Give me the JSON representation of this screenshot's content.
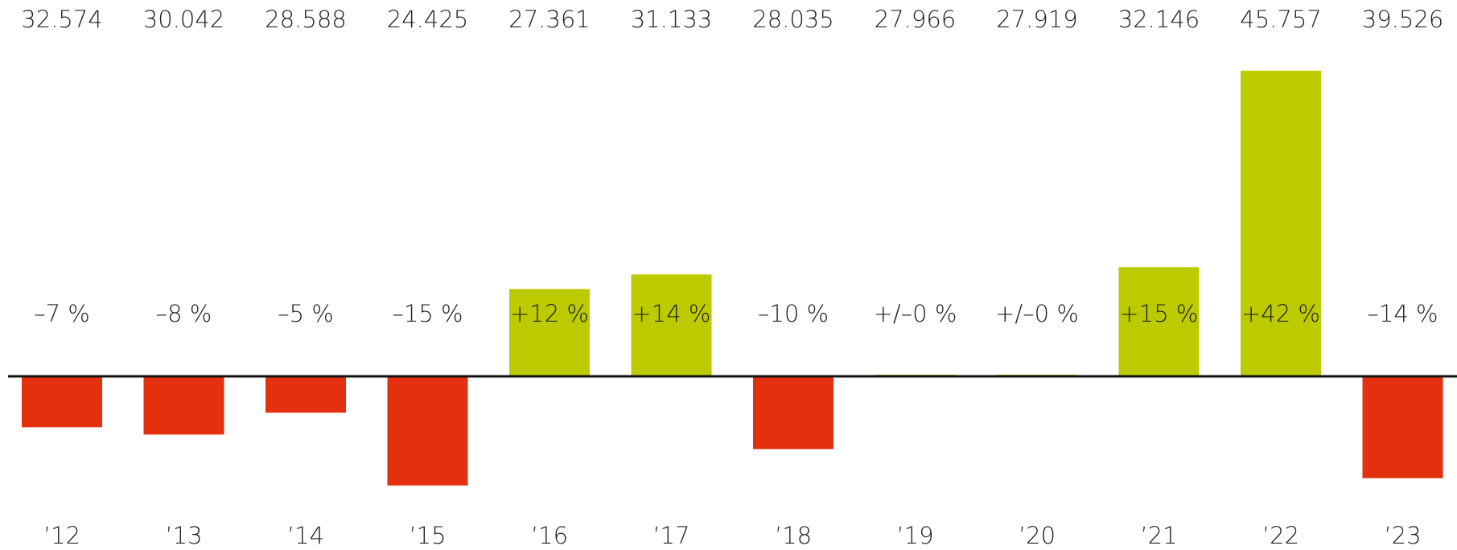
{
  "chart_data": {
    "type": "bar",
    "categories": [
      "’12",
      "’13",
      "’14",
      "’15",
      "’16",
      "’17",
      "’18",
      "’19",
      "’20",
      "’21",
      "’22",
      "’23"
    ],
    "values": [
      -7,
      -8,
      -5,
      -15,
      12,
      14,
      -10,
      0,
      0,
      15,
      42,
      -14
    ],
    "value_labels": [
      "–7 %",
      "–8 %",
      "–5 %",
      "–15 %",
      "+12 %",
      "+14 %",
      "–10 %",
      "+/–0 %",
      "+/–0 %",
      "+15 %",
      "+42 %",
      "–14 %"
    ],
    "top_labels": [
      "32.574",
      "30.042",
      "28.588",
      "24.425",
      "27.361",
      "31.133",
      "28.035",
      "27.966",
      "27.919",
      "32.146",
      "45.757",
      "39.526"
    ],
    "colors": {
      "positive": "#bccb00",
      "negative": "#e3300f"
    }
  }
}
